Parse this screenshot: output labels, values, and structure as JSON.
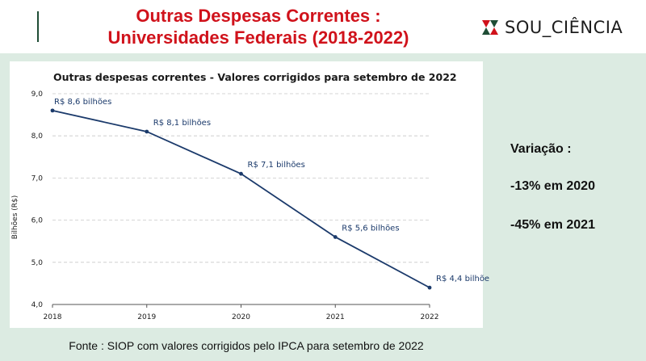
{
  "header": {
    "title_line1": "Outras Despesas Correntes :",
    "title_line2": "Universidades Federais (2018-2022)",
    "logo_text": "SOU_CIÊNCIA",
    "logo_icon": "sou-ciencia-logo-icon",
    "title_color": "#d0121b"
  },
  "sidebar": {
    "variation_title": "Variação :",
    "items": [
      "-13% em 2020",
      "-45% em 2021"
    ]
  },
  "footer": {
    "source": "Fonte : SIOP com valores corrigidos pelo IPCA para setembro de 2022"
  },
  "chart_data": {
    "type": "line",
    "title": "Outras despesas correntes - Valores corrigidos para setembro de 2022",
    "ylabel": "Bilhões (R$)",
    "xlabel": "",
    "x": [
      "2018",
      "2019",
      "2020",
      "2021",
      "2022"
    ],
    "values": [
      8.6,
      8.1,
      7.1,
      5.6,
      4.4
    ],
    "data_labels": [
      "R$ 8,6 bilhões",
      "R$ 8,1 bilhões",
      "R$ 7,1 bilhões",
      "R$ 5,6 bilhões",
      "R$ 4,4 bilhõe"
    ],
    "ylim": [
      4.0,
      9.0
    ],
    "yticks": [
      4.0,
      5.0,
      6.0,
      7.0,
      8.0,
      9.0
    ],
    "ytick_labels": [
      "4,0",
      "5,0",
      "6,0",
      "7,0",
      "8,0",
      "9,0"
    ],
    "grid": true,
    "line_color": "#1b3a6b"
  }
}
